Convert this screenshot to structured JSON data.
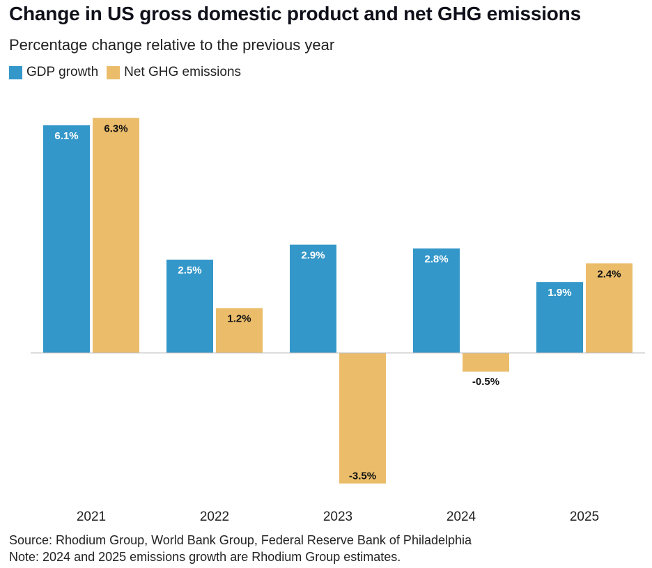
{
  "chart_data": {
    "type": "bar",
    "title": "Change in US gross domestic product and net GHG emissions",
    "subtitle": "Percentage change relative to the previous year",
    "categories": [
      "2021",
      "2022",
      "2023",
      "2024",
      "2025"
    ],
    "series": [
      {
        "name": "GDP growth",
        "color": "#3497c9",
        "label_color": "#ffffff",
        "values": [
          6.1,
          2.5,
          2.9,
          2.8,
          1.9
        ]
      },
      {
        "name": "Net GHG emissions",
        "color": "#ebbd6b",
        "label_color": "#111111",
        "values": [
          6.3,
          1.2,
          -3.5,
          -0.5,
          2.4
        ]
      }
    ],
    "value_suffix": "%",
    "xlabel": "",
    "ylabel": "",
    "ylim": [
      -3.5,
      6.3
    ],
    "grid": false,
    "legend_position": "top-left"
  },
  "footer": {
    "source": "Source: Rhodium Group, World Bank Group, Federal Reserve Bank of Philadelphia",
    "note": "Note: 2024 and 2025 emissions growth are Rhodium Group estimates."
  }
}
